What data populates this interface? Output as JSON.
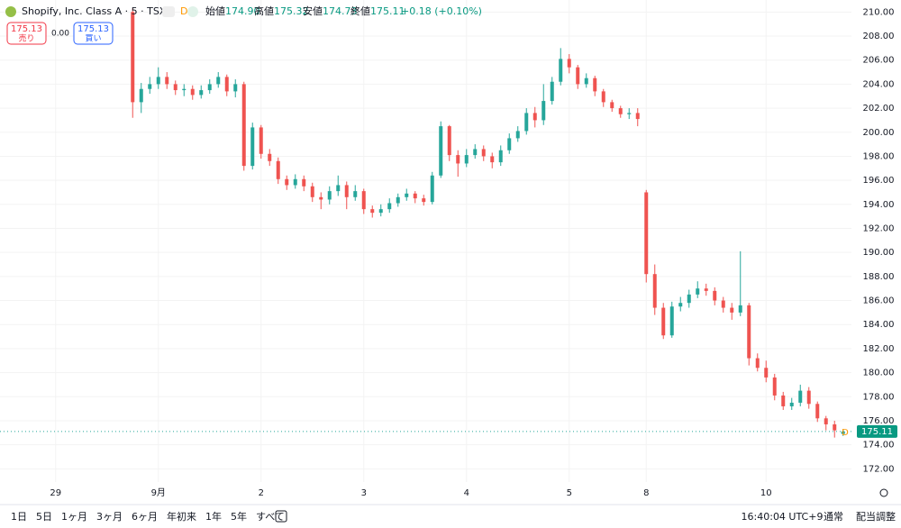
{
  "header": {
    "symbol": "Shopify, Inc. Class A · 5 · TSX",
    "d_badge": "D",
    "open_label": "始値",
    "open": "174.90",
    "high_label": "高値",
    "high": "175.32",
    "low_label": "安値",
    "low": "174.73",
    "close_label": "終値",
    "close": "175.11",
    "change": "+0.18 (+0.10%)",
    "sell_price": "175.13",
    "sell_label": "売り",
    "spread": "0.00",
    "buy_price": "175.13",
    "buy_label": "買い"
  },
  "toolbar": {
    "ranges": [
      "1日",
      "5日",
      "1ヶ月",
      "3ヶ月",
      "6ヶ月",
      "年初来",
      "1年",
      "5年",
      "すべて"
    ],
    "time": "16:40:04 UTC+9",
    "session": "通常",
    "adjust": "配当調整"
  },
  "chart_data": {
    "type": "candlestick",
    "grid": true,
    "ylim": [
      170.9,
      211
    ],
    "yticks": [
      {
        "value": 172,
        "label": "172.00"
      },
      {
        "value": 174,
        "label": "174.00"
      },
      {
        "value": 176,
        "label": "176.00"
      },
      {
        "value": 178,
        "label": "178.00"
      },
      {
        "value": 180,
        "label": "180.00"
      },
      {
        "value": 182,
        "label": "182.00"
      },
      {
        "value": 184,
        "label": "184.00"
      },
      {
        "value": 186,
        "label": "186.00"
      },
      {
        "value": 188,
        "label": "188.00"
      },
      {
        "value": 190,
        "label": "190.00"
      },
      {
        "value": 192,
        "label": "192.00"
      },
      {
        "value": 194,
        "label": "194.00"
      },
      {
        "value": 196,
        "label": "196.00"
      },
      {
        "value": 198,
        "label": "198.00"
      },
      {
        "value": 200,
        "label": "200.00"
      },
      {
        "value": 202,
        "label": "202.00"
      },
      {
        "value": 204,
        "label": "204.00"
      },
      {
        "value": 206,
        "label": "206.00"
      },
      {
        "value": 208,
        "label": "208.00"
      },
      {
        "value": 210,
        "label": "210.00"
      }
    ],
    "last_price": {
      "value": 175.11,
      "label": "175.11"
    },
    "last_marker": "D",
    "categories": [
      null,
      null,
      null,
      null,
      null,
      null,
      "29",
      null,
      null,
      null,
      null,
      null,
      null,
      null,
      null,
      null,
      null,
      null,
      "9月",
      null,
      null,
      null,
      null,
      null,
      null,
      null,
      null,
      null,
      null,
      null,
      "2",
      null,
      null,
      null,
      null,
      null,
      null,
      null,
      null,
      null,
      null,
      null,
      "3",
      null,
      null,
      null,
      null,
      null,
      null,
      null,
      null,
      null,
      null,
      null,
      "4",
      null,
      null,
      null,
      null,
      null,
      null,
      null,
      null,
      null,
      null,
      null,
      "5",
      null,
      null,
      null,
      null,
      null,
      null,
      null,
      null,
      "8",
      null,
      null,
      null,
      null,
      null,
      null,
      null,
      null,
      null,
      null,
      null,
      null,
      null,
      "10",
      null,
      null,
      null,
      null,
      null,
      null,
      null,
      null,
      null,
      null
    ],
    "series": [
      {
        "up_color": "#26a69a",
        "down_color": "#ef5350",
        "open": [
          null,
          null,
          null,
          null,
          null,
          null,
          null,
          null,
          null,
          null,
          null,
          null,
          null,
          null,
          null,
          210,
          202.5,
          203.6,
          204,
          204.6,
          204,
          203.5,
          203.6,
          203.1,
          203.5,
          204,
          204.6,
          203.4,
          204,
          197.2,
          200.4,
          198.2,
          197.6,
          196.1,
          195.6,
          196.1,
          195.5,
          194.6,
          194.4,
          195.1,
          195.6,
          194.6,
          195.1,
          193.6,
          193.3,
          193.6,
          194.1,
          194.6,
          194.9,
          194.5,
          194.2,
          196.4,
          200.5,
          198.1,
          197.4,
          198.1,
          198.6,
          198,
          197.5,
          198.5,
          199.5,
          200.1,
          201.6,
          201,
          202.6,
          204.2,
          206.1,
          205.4,
          204,
          204.5,
          203.4,
          202.5,
          202,
          201.5,
          201.6,
          195,
          188.2,
          185.4,
          183.1,
          185.5,
          185.8,
          186.5,
          187,
          186.8,
          186,
          185.4,
          185,
          185.6,
          181.2,
          180.4,
          179.6,
          178.1,
          177.2,
          177.5,
          178.5,
          177.4,
          176.2,
          175.7,
          174.9,
          null
        ],
        "high": [
          null,
          null,
          null,
          null,
          null,
          null,
          null,
          null,
          null,
          null,
          null,
          null,
          null,
          null,
          null,
          210.3,
          204.1,
          204.6,
          205.4,
          205,
          204.3,
          204,
          203.9,
          203.9,
          204.4,
          205,
          204.8,
          204.4,
          204.2,
          200.8,
          200.6,
          198.6,
          197.9,
          196.4,
          196.5,
          196.4,
          195.8,
          195,
          195.5,
          196.4,
          195.9,
          195.6,
          195.3,
          193.9,
          194,
          194.5,
          194.9,
          195.3,
          195.1,
          194.8,
          196.7,
          200.9,
          200.6,
          198.5,
          198.6,
          199,
          198.9,
          198.3,
          198.9,
          199.9,
          200.5,
          202,
          202.1,
          204,
          204.6,
          207,
          206.5,
          205.6,
          204.9,
          204.7,
          203.6,
          202.7,
          202.2,
          202,
          202,
          195.2,
          189,
          185.8,
          185.9,
          186.3,
          186.9,
          187.6,
          187.4,
          187.1,
          186.3,
          185.8,
          190.1,
          185.8,
          181.6,
          181,
          179.9,
          178.4,
          177.9,
          179,
          178.8,
          177.6,
          176.4,
          176,
          175.32,
          null
        ],
        "low": [
          null,
          null,
          null,
          null,
          null,
          null,
          null,
          null,
          null,
          null,
          null,
          null,
          null,
          null,
          null,
          201.2,
          201.6,
          203.2,
          203.6,
          203.6,
          203.1,
          203,
          202.7,
          202.8,
          203.2,
          203.7,
          203,
          202.9,
          196.8,
          196.9,
          197.8,
          197.2,
          195.7,
          195.2,
          195.3,
          195.1,
          194.2,
          193.6,
          194,
          194.7,
          193.6,
          194.3,
          193.2,
          192.9,
          193,
          193.3,
          193.8,
          194.3,
          194.1,
          193.9,
          194,
          196.2,
          197.6,
          196.3,
          197.1,
          197.8,
          197.6,
          197,
          197.2,
          198.2,
          199.2,
          199.8,
          200.4,
          200.6,
          202.3,
          203.9,
          204.9,
          203.6,
          203.7,
          203,
          202.1,
          201.7,
          201.2,
          201.1,
          200.5,
          187.5,
          184.8,
          182.8,
          182.9,
          185.1,
          185.4,
          186.2,
          186.4,
          185.6,
          185,
          184.4,
          184.7,
          180.6,
          180.1,
          179.2,
          177.7,
          176.9,
          176.9,
          177.2,
          177,
          175.9,
          175.2,
          174.6,
          174.73,
          null
        ],
        "close": [
          null,
          null,
          null,
          null,
          null,
          null,
          null,
          null,
          null,
          null,
          null,
          null,
          null,
          null,
          null,
          202.5,
          203.6,
          204,
          204.6,
          204,
          203.5,
          203.6,
          203.1,
          203.5,
          204,
          204.6,
          203.4,
          204,
          197.2,
          200.4,
          198.2,
          197.6,
          196.1,
          195.6,
          196.1,
          195.5,
          194.6,
          194.4,
          195.1,
          195.6,
          194.6,
          195.1,
          193.6,
          193.3,
          193.6,
          194.1,
          194.6,
          194.9,
          194.5,
          194.2,
          196.4,
          200.5,
          198.1,
          197.4,
          198.1,
          198.6,
          198,
          197.5,
          198.5,
          199.5,
          200.1,
          201.6,
          201,
          202.6,
          204.2,
          206.1,
          205.4,
          204,
          204.5,
          203.4,
          202.5,
          202,
          201.5,
          201.6,
          201.1,
          188.2,
          185.4,
          183.1,
          185.5,
          185.8,
          186.5,
          187,
          186.8,
          186,
          185.4,
          185,
          185.6,
          181.2,
          180.4,
          179.6,
          178.1,
          177.2,
          177.5,
          178.5,
          177.4,
          176.2,
          175.7,
          175.2,
          175.11,
          null
        ]
      }
    ]
  }
}
